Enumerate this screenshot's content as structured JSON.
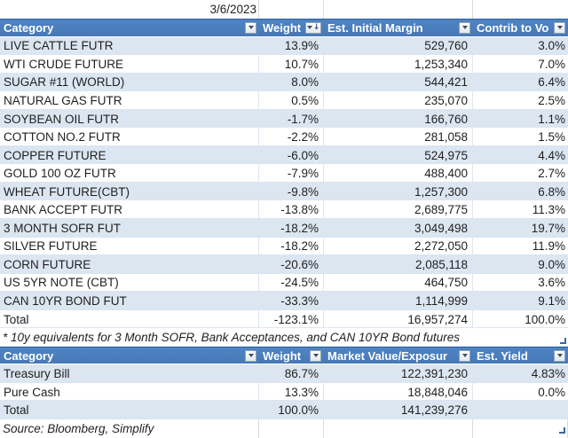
{
  "date_label": "3/6/2023",
  "futures_table": {
    "columns": [
      {
        "label": "Category",
        "filter": "dropdown"
      },
      {
        "label": "Weight",
        "filter": "dropdown-sorted-descending"
      },
      {
        "label": "Est. Initial Margin",
        "filter": "dropdown"
      },
      {
        "label": "Contrib to Vo",
        "filter": "dropdown"
      }
    ],
    "rows": [
      [
        "LIVE CATTLE FUTR",
        "13.9%",
        "529,760",
        "3.0%"
      ],
      [
        "WTI CRUDE FUTURE",
        "10.7%",
        "1,253,340",
        "7.0%"
      ],
      [
        "SUGAR #11 (WORLD)",
        "8.0%",
        "544,421",
        "6.4%"
      ],
      [
        "NATURAL GAS FUTR",
        "0.5%",
        "235,070",
        "2.5%"
      ],
      [
        "SOYBEAN OIL FUTR",
        "-1.7%",
        "166,760",
        "1.1%"
      ],
      [
        "COTTON NO.2 FUTR",
        "-2.2%",
        "281,058",
        "1.5%"
      ],
      [
        "COPPER FUTURE",
        "-6.0%",
        "524,975",
        "4.4%"
      ],
      [
        "GOLD 100 OZ FUTR",
        "-7.9%",
        "488,400",
        "2.7%"
      ],
      [
        "WHEAT FUTURE(CBT)",
        "-9.8%",
        "1,257,300",
        "6.8%"
      ],
      [
        "BANK ACCEPT FUTR",
        "-13.8%",
        "2,689,775",
        "11.3%"
      ],
      [
        "3 MONTH SOFR FUT",
        "-18.2%",
        "3,049,498",
        "19.7%"
      ],
      [
        "SILVER FUTURE",
        "-18.2%",
        "2,272,050",
        "11.9%"
      ],
      [
        "CORN FUTURE",
        "-20.6%",
        "2,085,118",
        "9.0%"
      ],
      [
        "US 5YR NOTE (CBT)",
        "-24.5%",
        "464,750",
        "3.6%"
      ],
      [
        "CAN 10YR BOND FUT",
        "-33.3%",
        "1,114,999",
        "9.1%"
      ]
    ],
    "total_row": [
      "Total",
      "-123.1%",
      "16,957,274",
      "100.0%"
    ],
    "footnote": "* 10y equivalents for 3 Month SOFR, Bank Acceptances, and CAN 10YR Bond futures"
  },
  "cash_table": {
    "columns": [
      {
        "label": "Category",
        "filter": "dropdown"
      },
      {
        "label": "Weight",
        "filter": "dropdown"
      },
      {
        "label": "Market Value/Exposur",
        "filter": "dropdown"
      },
      {
        "label": "Est. Yield",
        "filter": "dropdown"
      }
    ],
    "rows": [
      [
        "Treasury Bill",
        "86.7%",
        "122,391,230",
        "4.83%"
      ],
      [
        "Pure Cash",
        "13.3%",
        "18,848,046",
        "0.0%"
      ]
    ],
    "total_row": [
      "Total",
      "100.0%",
      "141,239,276",
      ""
    ]
  },
  "source_note": "Source: Bloomberg, Simplify",
  "colors": {
    "header_bg": "#4a7ebb",
    "header_text": "#ffffff",
    "band_bg": "#dce6f1",
    "body_text": "#1f1f1f"
  }
}
